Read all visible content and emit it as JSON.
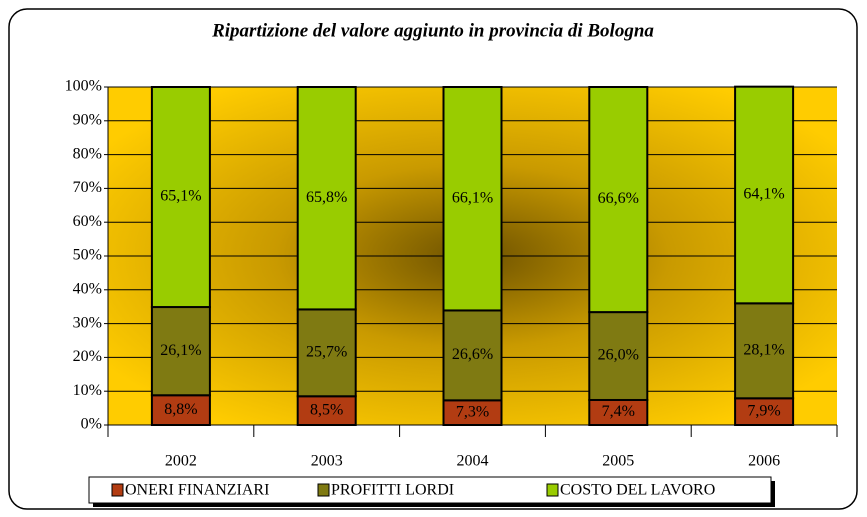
{
  "chart_data": {
    "type": "stacked_bar",
    "title": "Ripartizione del valore aggiunto in provincia di Bologna",
    "categories": [
      "2002",
      "2003",
      "2004",
      "2005",
      "2006"
    ],
    "series": [
      {
        "name": "ONERI FINANZIARI",
        "color": "#b23c12",
        "values": [
          8.8,
          8.5,
          7.3,
          7.4,
          7.9
        ],
        "value_labels": [
          "8,8%",
          "8,5%",
          "7,3%",
          "7,4%",
          "7,9%"
        ]
      },
      {
        "name": "PROFITTI LORDI",
        "color": "#7f7a12",
        "values": [
          26.1,
          25.7,
          26.6,
          26.0,
          28.1
        ],
        "value_labels": [
          "26,1%",
          "25,7%",
          "26,6%",
          "26,0%",
          "28,1%"
        ]
      },
      {
        "name": "COSTO DEL LAVORO",
        "color": "#99cc00",
        "values": [
          65.1,
          65.8,
          66.1,
          66.6,
          64.1
        ],
        "value_labels": [
          "65,1%",
          "65,8%",
          "66,1%",
          "66,6%",
          "64,1%"
        ]
      }
    ],
    "ylim": [
      0,
      100
    ],
    "yticks": [
      {
        "value": 0,
        "label": "0%"
      },
      {
        "value": 10,
        "label": "10%"
      },
      {
        "value": 20,
        "label": "20%"
      },
      {
        "value": 30,
        "label": "30%"
      },
      {
        "value": 40,
        "label": "40%"
      },
      {
        "value": 50,
        "label": "50%"
      },
      {
        "value": 60,
        "label": "60%"
      },
      {
        "value": 70,
        "label": "70%"
      },
      {
        "value": 80,
        "label": "80%"
      },
      {
        "value": 90,
        "label": "90%"
      },
      {
        "value": 100,
        "label": "100%"
      }
    ],
    "grid": true,
    "legend": "bottom"
  }
}
